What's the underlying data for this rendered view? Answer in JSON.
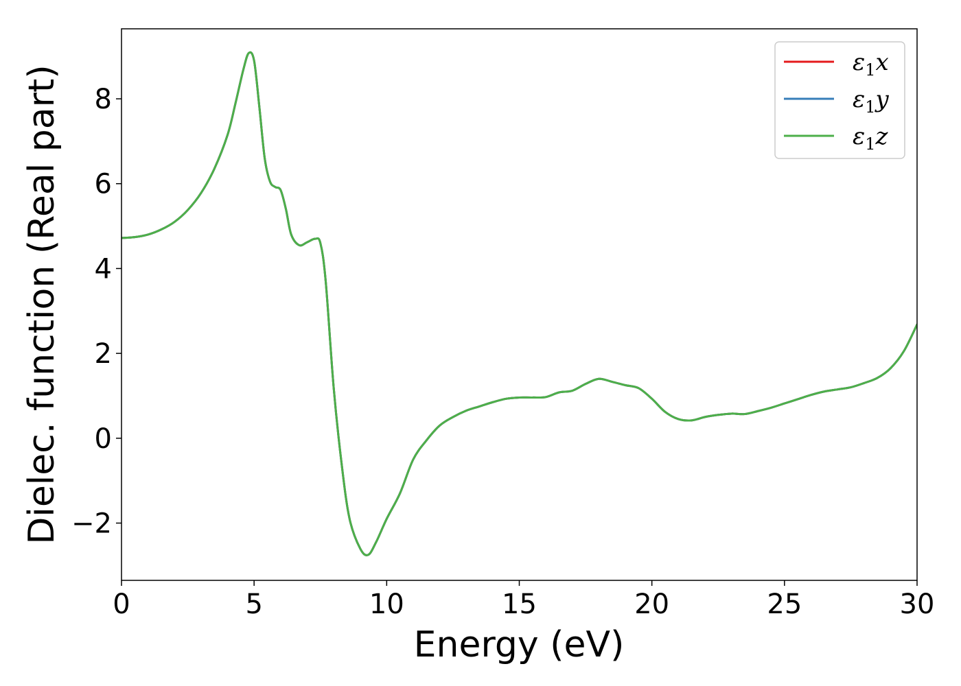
{
  "chart_data": {
    "type": "line",
    "xlabel": "Energy (eV)",
    "ylabel": "Dielec. function (Real part)",
    "xlim": [
      0,
      30
    ],
    "ylim": [
      -3.35,
      9.65
    ],
    "xticks": [
      0,
      5,
      10,
      15,
      20,
      25,
      30
    ],
    "yticks": [
      -2,
      0,
      2,
      4,
      6,
      8
    ],
    "grid": false,
    "legend_position": "top-right",
    "x": [
      0,
      0.5,
      1,
      1.5,
      2,
      2.5,
      3,
      3.5,
      4,
      4.3,
      4.6,
      4.8,
      5.0,
      5.2,
      5.4,
      5.6,
      5.8,
      6.0,
      6.2,
      6.4,
      6.7,
      7.0,
      7.3,
      7.5,
      7.7,
      8.0,
      8.3,
      8.6,
      9.0,
      9.3,
      9.6,
      10.0,
      10.5,
      11.0,
      11.5,
      12.0,
      12.5,
      13.0,
      13.5,
      14.0,
      14.5,
      15.0,
      15.5,
      16.0,
      16.5,
      17.0,
      17.5,
      18.0,
      18.5,
      19.0,
      19.5,
      20.0,
      20.5,
      21.0,
      21.5,
      22.0,
      22.5,
      23.0,
      23.5,
      24.0,
      24.5,
      25.0,
      25.5,
      26.0,
      26.5,
      27.0,
      27.5,
      28.0,
      28.5,
      29.0,
      29.5,
      30.0
    ],
    "series": [
      {
        "name": "ε₁x",
        "label_base": "ε",
        "label_sub": "1",
        "label_var": "x",
        "color": "#e41a1c",
        "values": [
          4.72,
          4.74,
          4.8,
          4.92,
          5.1,
          5.38,
          5.78,
          6.35,
          7.15,
          7.9,
          8.7,
          9.08,
          8.9,
          7.8,
          6.6,
          6.05,
          5.92,
          5.85,
          5.4,
          4.8,
          4.55,
          4.62,
          4.7,
          4.6,
          3.7,
          1.2,
          -0.6,
          -1.9,
          -2.6,
          -2.75,
          -2.45,
          -1.9,
          -1.3,
          -0.5,
          -0.05,
          0.3,
          0.5,
          0.65,
          0.75,
          0.85,
          0.93,
          0.96,
          0.96,
          0.97,
          1.08,
          1.12,
          1.28,
          1.4,
          1.33,
          1.25,
          1.18,
          0.93,
          0.62,
          0.45,
          0.42,
          0.5,
          0.55,
          0.58,
          0.57,
          0.64,
          0.72,
          0.82,
          0.92,
          1.02,
          1.1,
          1.15,
          1.2,
          1.3,
          1.42,
          1.65,
          2.05,
          2.68
        ]
      },
      {
        "name": "ε₁y",
        "label_base": "ε",
        "label_sub": "1",
        "label_var": "y",
        "color": "#377eb8",
        "values": [
          4.72,
          4.74,
          4.8,
          4.92,
          5.1,
          5.38,
          5.78,
          6.35,
          7.15,
          7.9,
          8.7,
          9.08,
          8.9,
          7.8,
          6.6,
          6.05,
          5.92,
          5.85,
          5.4,
          4.8,
          4.55,
          4.62,
          4.7,
          4.6,
          3.7,
          1.2,
          -0.6,
          -1.9,
          -2.6,
          -2.75,
          -2.45,
          -1.9,
          -1.3,
          -0.5,
          -0.05,
          0.3,
          0.5,
          0.65,
          0.75,
          0.85,
          0.93,
          0.96,
          0.96,
          0.97,
          1.08,
          1.12,
          1.28,
          1.4,
          1.33,
          1.25,
          1.18,
          0.93,
          0.62,
          0.45,
          0.42,
          0.5,
          0.55,
          0.58,
          0.57,
          0.64,
          0.72,
          0.82,
          0.92,
          1.02,
          1.1,
          1.15,
          1.2,
          1.3,
          1.42,
          1.65,
          2.05,
          2.68
        ]
      },
      {
        "name": "ε₁z",
        "label_base": "ε",
        "label_sub": "1",
        "label_var": "z",
        "color": "#4daf4a",
        "values": [
          4.72,
          4.74,
          4.8,
          4.92,
          5.1,
          5.38,
          5.78,
          6.35,
          7.15,
          7.9,
          8.7,
          9.08,
          8.9,
          7.8,
          6.6,
          6.05,
          5.92,
          5.85,
          5.4,
          4.8,
          4.55,
          4.62,
          4.7,
          4.6,
          3.7,
          1.2,
          -0.6,
          -1.9,
          -2.6,
          -2.75,
          -2.45,
          -1.9,
          -1.3,
          -0.5,
          -0.05,
          0.3,
          0.5,
          0.65,
          0.75,
          0.85,
          0.93,
          0.96,
          0.96,
          0.97,
          1.08,
          1.12,
          1.28,
          1.4,
          1.33,
          1.25,
          1.18,
          0.93,
          0.62,
          0.45,
          0.42,
          0.5,
          0.55,
          0.58,
          0.57,
          0.64,
          0.72,
          0.82,
          0.92,
          1.02,
          1.1,
          1.15,
          1.2,
          1.3,
          1.42,
          1.65,
          2.05,
          2.68
        ]
      }
    ]
  }
}
